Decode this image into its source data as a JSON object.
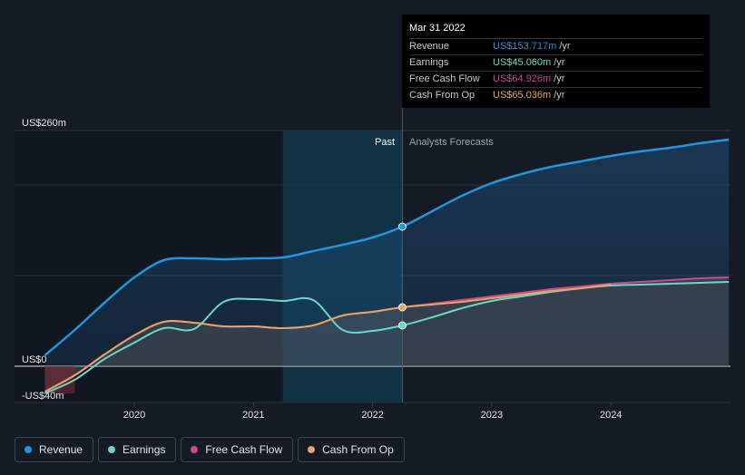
{
  "colors": {
    "background": "#151b24",
    "revenue": "#2394df",
    "earnings": "#6ad7c7",
    "free_cash_flow": "#c84a8f",
    "cash_from_op": "#e8a466",
    "forecast_band": "#0f3b4f"
  },
  "tooltip": {
    "date": "Mar 31 2022",
    "rows": [
      {
        "name": "Revenue",
        "value": "US$153.717m",
        "unit": "/yr",
        "color": "#2394df"
      },
      {
        "name": "Earnings",
        "value": "US$45.060m",
        "unit": "/yr",
        "color": "#6ad7c7"
      },
      {
        "name": "Free Cash Flow",
        "value": "US$64.926m",
        "unit": "/yr",
        "color": "#c84a8f"
      },
      {
        "name": "Cash From Op",
        "value": "US$65.036m",
        "unit": "/yr",
        "color": "#e8a466"
      }
    ]
  },
  "regions": {
    "past_label": "Past",
    "forecast_label": "Analysts Forecasts"
  },
  "legend": [
    {
      "label": "Revenue",
      "color": "#2394df"
    },
    {
      "label": "Earnings",
      "color": "#6ad7c7"
    },
    {
      "label": "Free Cash Flow",
      "color": "#c84a8f"
    },
    {
      "label": "Cash From Op",
      "color": "#e8a466"
    }
  ],
  "chart_data": {
    "type": "line",
    "title": "",
    "xlabel": "",
    "ylabel": "",
    "xlim": [
      2019.25,
      2024.99
    ],
    "ylim": [
      -40,
      260
    ],
    "ytick_labels": [
      {
        "value": 260,
        "label": "US$260m"
      },
      {
        "value": 0,
        "label": "US$0"
      },
      {
        "value": -40,
        "label": "-US$40m"
      }
    ],
    "xticks": [
      {
        "value": 2020,
        "label": "2020"
      },
      {
        "value": 2021,
        "label": "2021"
      },
      {
        "value": 2022,
        "label": "2022"
      },
      {
        "value": 2023,
        "label": "2023"
      },
      {
        "value": 2024,
        "label": "2024"
      }
    ],
    "past_end": 2022.25,
    "forecast_band_start": 2021.25,
    "highlight_x": 2022.25,
    "grid": true,
    "series": [
      {
        "name": "Revenue",
        "color": "#2394df",
        "x": [
          2019.25,
          2019.5,
          2019.75,
          2020.0,
          2020.25,
          2020.5,
          2020.75,
          2021.0,
          2021.25,
          2021.5,
          2021.75,
          2022.0,
          2022.25,
          2022.5,
          2022.75,
          2023.0,
          2023.25,
          2023.5,
          2023.75,
          2024.0,
          2024.25,
          2024.5,
          2024.75,
          2024.99
        ],
        "y": [
          12,
          40,
          70,
          98,
          117,
          119,
          118,
          119,
          120,
          127,
          134,
          142,
          154,
          171,
          188,
          202,
          212,
          220,
          226,
          232,
          237,
          241,
          246,
          250
        ]
      },
      {
        "name": "Earnings",
        "color": "#6ad7c7",
        "x": [
          2019.25,
          2019.5,
          2019.75,
          2020.0,
          2020.25,
          2020.5,
          2020.75,
          2021.0,
          2021.25,
          2021.5,
          2021.75,
          2022.0,
          2022.25,
          2022.5,
          2022.75,
          2023.0,
          2023.25,
          2023.5,
          2023.75,
          2024.0,
          2024.25,
          2024.5,
          2024.75,
          2024.99
        ],
        "y": [
          -30,
          -15,
          8,
          26,
          42,
          41,
          71,
          74,
          72,
          73,
          40,
          39,
          45,
          54,
          64,
          72,
          77,
          82,
          86,
          89,
          90,
          91,
          92,
          93
        ]
      },
      {
        "name": "Free Cash Flow",
        "color": "#c84a8f",
        "x": [
          2019.25,
          2019.5,
          2019.75,
          2020.0,
          2020.25,
          2020.5,
          2020.75,
          2021.0,
          2021.25,
          2021.5,
          2021.75,
          2022.0,
          2022.25,
          2022.5,
          2022.75,
          2023.0,
          2023.25,
          2023.5,
          2023.75,
          2024.0,
          2024.25,
          2024.5,
          2024.75,
          2024.99
        ],
        "y": [
          -28,
          -10,
          13,
          34,
          49,
          48,
          44,
          44,
          42,
          45,
          56,
          60,
          65,
          69,
          73,
          77,
          81,
          85,
          88,
          91,
          93,
          95,
          97,
          98
        ]
      },
      {
        "name": "Cash From Op",
        "color": "#e8a466",
        "x": [
          2019.25,
          2019.5,
          2019.75,
          2020.0,
          2020.25,
          2020.5,
          2020.75,
          2021.0,
          2021.25,
          2021.5,
          2021.75,
          2022.0,
          2022.25,
          2022.5,
          2022.75,
          2023.0,
          2023.25,
          2023.5,
          2023.75,
          2024.0
        ],
        "y": [
          -28,
          -10,
          13,
          34,
          49,
          48,
          44,
          44,
          42,
          45,
          56,
          60,
          65,
          68,
          71,
          75,
          79,
          83,
          86,
          90
        ]
      }
    ]
  }
}
